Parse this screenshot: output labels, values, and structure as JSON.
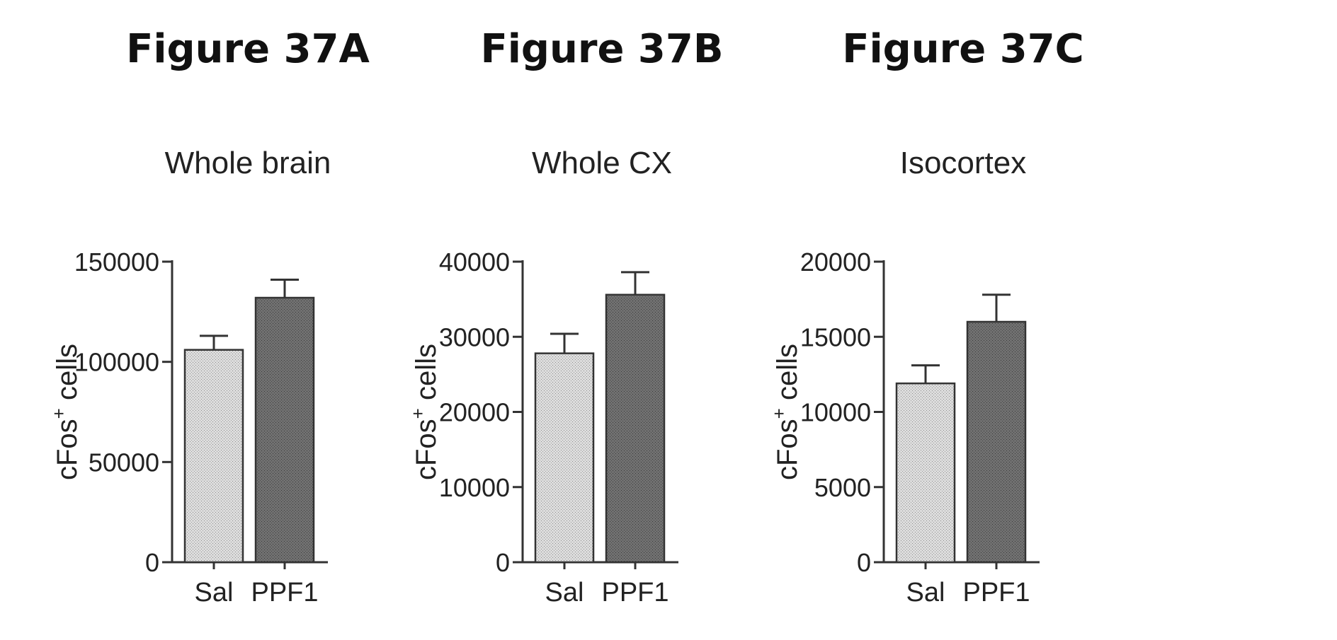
{
  "chart_data": [
    {
      "figure_label": "Figure 37A",
      "type": "bar",
      "title": "Whole brain",
      "ylabel": "cFos",
      "ylabel_sup": "+",
      "ylabel_suffix": "cells",
      "ylim": [
        0,
        150000
      ],
      "yticks": [
        0,
        50000,
        100000,
        150000
      ],
      "ytick_labels": [
        "0",
        "50000",
        "100000",
        "150000"
      ],
      "categories": [
        "Sal",
        "PPF1"
      ],
      "values": [
        106000,
        132000
      ],
      "errors": [
        7000,
        9000
      ],
      "bar_colors": [
        "#d2d2d2",
        "#6a6a6a"
      ]
    },
    {
      "figure_label": "Figure 37B",
      "type": "bar",
      "title": "Whole CX",
      "ylabel": "cFos",
      "ylabel_sup": "+",
      "ylabel_suffix": "cells",
      "ylim": [
        0,
        40000
      ],
      "yticks": [
        0,
        10000,
        20000,
        30000,
        40000
      ],
      "ytick_labels": [
        "0",
        "10000",
        "20000",
        "30000",
        "40000"
      ],
      "categories": [
        "Sal",
        "PPF1"
      ],
      "values": [
        27800,
        35600
      ],
      "errors": [
        2600,
        3000
      ],
      "bar_colors": [
        "#d2d2d2",
        "#6a6a6a"
      ]
    },
    {
      "figure_label": "Figure 37C",
      "type": "bar",
      "title": "Isocortex",
      "ylabel": "cFos",
      "ylabel_sup": "+",
      "ylabel_suffix": "cells",
      "ylim": [
        0,
        20000
      ],
      "yticks": [
        0,
        5000,
        10000,
        15000,
        20000
      ],
      "ytick_labels": [
        "0",
        "5000",
        "10000",
        "15000",
        "20000"
      ],
      "categories": [
        "Sal",
        "PPF1"
      ],
      "values": [
        11900,
        16000
      ],
      "errors": [
        1200,
        1800
      ],
      "bar_colors": [
        "#d2d2d2",
        "#6a6a6a"
      ]
    }
  ]
}
